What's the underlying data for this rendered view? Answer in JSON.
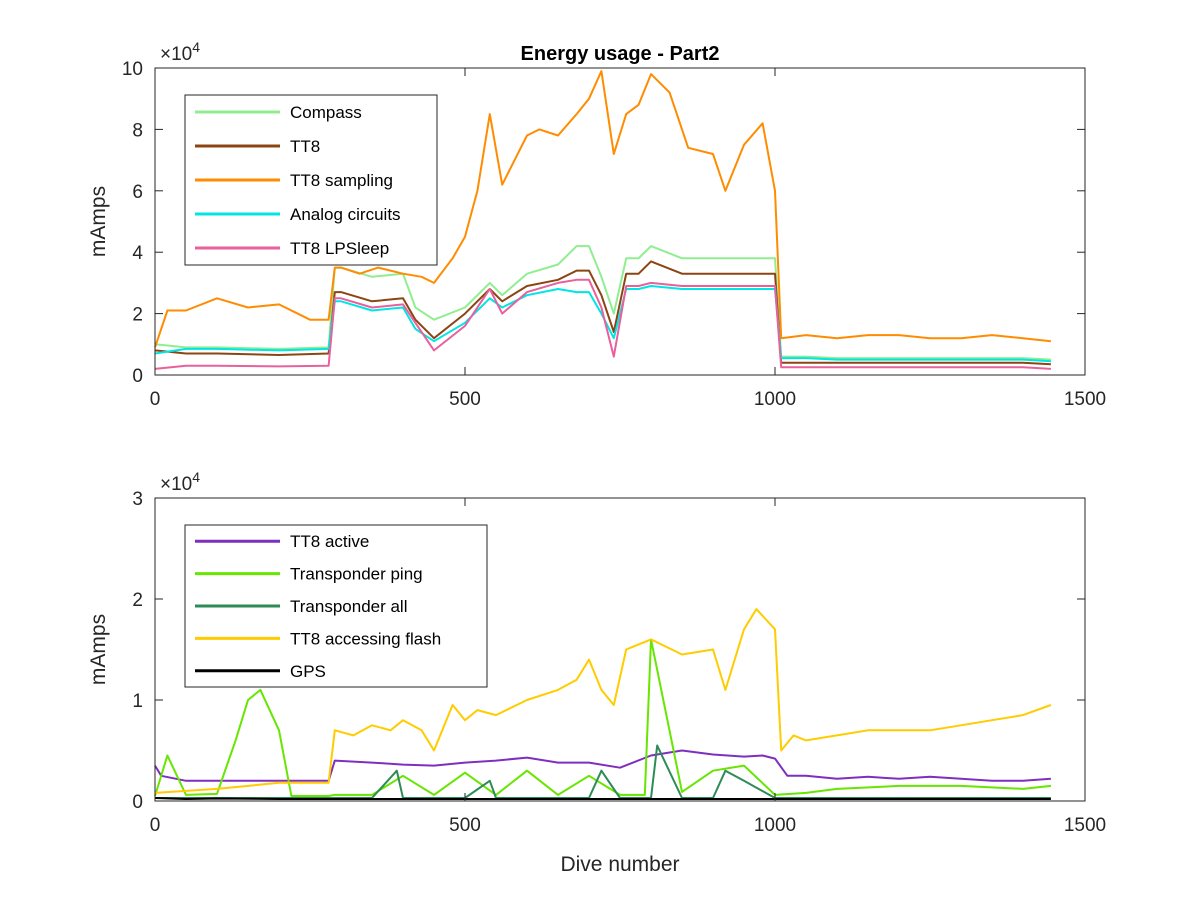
{
  "chart_data": [
    {
      "type": "line",
      "title": "Energy usage - Part2",
      "xlabel": "",
      "ylabel": "mAmps",
      "xlim": [
        0,
        1500
      ],
      "ylim": [
        0,
        100000
      ],
      "xticks": [
        "0",
        "500",
        "1000",
        "1500"
      ],
      "yticks": [
        "0",
        "2",
        "4",
        "6",
        "8",
        "10"
      ],
      "yexponent": "×10^4",
      "legend_position": "top-left",
      "grid": false,
      "series": [
        {
          "name": "Compass",
          "color": "#90ee90",
          "x": [
            0,
            50,
            100,
            200,
            280,
            290,
            300,
            350,
            400,
            420,
            450,
            500,
            540,
            560,
            600,
            650,
            680,
            700,
            720,
            740,
            760,
            780,
            800,
            850,
            900,
            950,
            1000,
            1010,
            1050,
            1100,
            1200,
            1300,
            1400,
            1445
          ],
          "y": [
            10000,
            9000,
            9000,
            8500,
            9000,
            35000,
            35000,
            32000,
            33000,
            22000,
            18000,
            22000,
            30000,
            26000,
            33000,
            36000,
            42000,
            42000,
            32000,
            20000,
            38000,
            38000,
            42000,
            38000,
            38000,
            38000,
            38000,
            6000,
            6000,
            5500,
            5500,
            5500,
            5500,
            5000
          ]
        },
        {
          "name": "TT8",
          "color": "#8b4513",
          "x": [
            0,
            50,
            100,
            200,
            280,
            290,
            300,
            350,
            400,
            420,
            450,
            500,
            540,
            560,
            600,
            650,
            680,
            700,
            720,
            740,
            760,
            780,
            800,
            850,
            900,
            950,
            1000,
            1010,
            1050,
            1100,
            1200,
            1300,
            1400,
            1445
          ],
          "y": [
            8000,
            7000,
            7000,
            6500,
            7000,
            27000,
            27000,
            24000,
            25000,
            18000,
            12000,
            20000,
            28000,
            24000,
            29000,
            31000,
            34000,
            34000,
            26000,
            14000,
            33000,
            33000,
            37000,
            33000,
            33000,
            33000,
            33000,
            4000,
            4000,
            4000,
            4000,
            4000,
            4000,
            3500
          ]
        },
        {
          "name": "TT8 sampling",
          "color": "#ff8c00",
          "x": [
            0,
            20,
            50,
            100,
            150,
            200,
            250,
            280,
            290,
            300,
            330,
            360,
            400,
            430,
            450,
            480,
            500,
            520,
            540,
            560,
            580,
            600,
            620,
            650,
            680,
            700,
            720,
            740,
            760,
            780,
            800,
            830,
            860,
            900,
            920,
            950,
            980,
            1000,
            1010,
            1050,
            1100,
            1150,
            1200,
            1250,
            1300,
            1350,
            1400,
            1445
          ],
          "y": [
            9000,
            21000,
            21000,
            25000,
            22000,
            23000,
            18000,
            18000,
            35000,
            35000,
            33000,
            35000,
            33000,
            32000,
            30000,
            38000,
            45000,
            60000,
            85000,
            62000,
            70000,
            78000,
            80000,
            78000,
            85000,
            90000,
            99000,
            72000,
            85000,
            88000,
            98000,
            92000,
            74000,
            72000,
            60000,
            75000,
            82000,
            60000,
            12000,
            13000,
            12000,
            13000,
            13000,
            12000,
            12000,
            13000,
            12000,
            11000
          ]
        },
        {
          "name": "Analog circuits",
          "color": "#00e5e5",
          "x": [
            0,
            50,
            100,
            200,
            280,
            290,
            300,
            350,
            400,
            420,
            450,
            500,
            540,
            560,
            600,
            650,
            680,
            700,
            720,
            740,
            760,
            780,
            800,
            850,
            900,
            950,
            1000,
            1010,
            1050,
            1100,
            1200,
            1300,
            1400,
            1445
          ],
          "y": [
            7000,
            8500,
            8500,
            8000,
            8500,
            24000,
            24000,
            21000,
            22000,
            15000,
            11000,
            17000,
            25000,
            22000,
            26000,
            28000,
            27000,
            27000,
            20000,
            12000,
            28000,
            28000,
            29000,
            28000,
            28000,
            28000,
            28000,
            5500,
            5500,
            5000,
            5000,
            5000,
            5000,
            4500
          ]
        },
        {
          "name": "TT8 LPSleep",
          "color": "#e8609c",
          "x": [
            0,
            50,
            100,
            200,
            280,
            290,
            300,
            350,
            400,
            420,
            450,
            500,
            540,
            560,
            600,
            650,
            680,
            700,
            720,
            740,
            760,
            780,
            800,
            850,
            900,
            950,
            1000,
            1010,
            1050,
            1100,
            1200,
            1300,
            1400,
            1445
          ],
          "y": [
            2000,
            3000,
            3000,
            2800,
            3000,
            25000,
            25000,
            22000,
            23000,
            17000,
            8000,
            16000,
            28000,
            20000,
            27000,
            30000,
            31000,
            31000,
            22000,
            6000,
            29000,
            29000,
            30000,
            29000,
            29000,
            29000,
            29000,
            2500,
            2500,
            2500,
            2500,
            2500,
            2500,
            2000
          ]
        }
      ]
    },
    {
      "type": "line",
      "title": "",
      "xlabel": "Dive number",
      "ylabel": "mAmps",
      "xlim": [
        0,
        1500
      ],
      "ylim": [
        0,
        30000
      ],
      "xticks": [
        "0",
        "500",
        "1000",
        "1500"
      ],
      "yticks": [
        "0",
        "1",
        "2",
        "3"
      ],
      "yexponent": "×10^4",
      "legend_position": "top-left",
      "grid": false,
      "series": [
        {
          "name": "TT8 active",
          "color": "#7e2fbe",
          "x": [
            0,
            10,
            50,
            100,
            200,
            280,
            290,
            350,
            400,
            450,
            500,
            550,
            600,
            650,
            700,
            750,
            800,
            850,
            900,
            950,
            980,
            1000,
            1020,
            1050,
            1100,
            1150,
            1200,
            1250,
            1300,
            1350,
            1400,
            1445
          ],
          "y": [
            3500,
            2500,
            2000,
            2000,
            2000,
            2000,
            4000,
            3800,
            3600,
            3500,
            3800,
            4000,
            4300,
            3800,
            3800,
            3300,
            4500,
            5000,
            4600,
            4400,
            4500,
            4200,
            2500,
            2500,
            2200,
            2400,
            2200,
            2400,
            2200,
            2000,
            2000,
            2200
          ]
        },
        {
          "name": "Transponder ping",
          "color": "#66e600",
          "x": [
            0,
            20,
            50,
            100,
            130,
            150,
            170,
            200,
            220,
            250,
            280,
            290,
            350,
            400,
            450,
            500,
            550,
            600,
            650,
            700,
            750,
            790,
            800,
            850,
            900,
            950,
            1000,
            1050,
            1100,
            1200,
            1300,
            1400,
            1445
          ],
          "y": [
            500,
            4500,
            600,
            700,
            6000,
            10000,
            11000,
            7000,
            500,
            500,
            500,
            600,
            600,
            2500,
            600,
            2800,
            600,
            3000,
            600,
            2500,
            600,
            600,
            16000,
            900,
            3000,
            3500,
            600,
            800,
            1200,
            1500,
            1500,
            1200,
            1500
          ]
        },
        {
          "name": "Transponder all",
          "color": "#2e8b57",
          "x": [
            0,
            50,
            100,
            200,
            280,
            290,
            350,
            390,
            400,
            450,
            500,
            540,
            550,
            600,
            650,
            700,
            720,
            750,
            800,
            810,
            850,
            900,
            920,
            950,
            1000,
            1050,
            1100,
            1200,
            1300,
            1400,
            1445
          ],
          "y": [
            300,
            300,
            300,
            300,
            300,
            300,
            300,
            3000,
            300,
            300,
            300,
            2000,
            300,
            300,
            300,
            300,
            3000,
            300,
            300,
            5500,
            300,
            300,
            3000,
            2000,
            300,
            300,
            300,
            300,
            300,
            300,
            300
          ]
        },
        {
          "name": "TT8 accessing flash",
          "color": "#ffcc00",
          "x": [
            0,
            50,
            100,
            150,
            200,
            250,
            280,
            290,
            320,
            350,
            380,
            400,
            430,
            450,
            480,
            500,
            520,
            550,
            600,
            650,
            680,
            700,
            720,
            740,
            760,
            800,
            850,
            900,
            920,
            950,
            970,
            1000,
            1010,
            1030,
            1050,
            1100,
            1150,
            1200,
            1250,
            1300,
            1350,
            1400,
            1445
          ],
          "y": [
            800,
            1000,
            1200,
            1500,
            1800,
            1800,
            1800,
            7000,
            6500,
            7500,
            7000,
            8000,
            7000,
            5000,
            9500,
            8000,
            9000,
            8500,
            10000,
            11000,
            12000,
            14000,
            11000,
            9500,
            15000,
            16000,
            14500,
            15000,
            11000,
            17000,
            19000,
            17000,
            5000,
            6500,
            6000,
            6500,
            7000,
            7000,
            7000,
            7500,
            8000,
            8500,
            9500
          ]
        },
        {
          "name": "GPS",
          "color": "#000000",
          "x": [
            0,
            50,
            100,
            200,
            300,
            400,
            500,
            600,
            700,
            800,
            900,
            1000,
            1100,
            1200,
            1300,
            1400,
            1445
          ],
          "y": [
            300,
            200,
            250,
            200,
            200,
            200,
            200,
            200,
            200,
            200,
            200,
            200,
            200,
            200,
            200,
            200,
            200
          ]
        }
      ]
    }
  ]
}
